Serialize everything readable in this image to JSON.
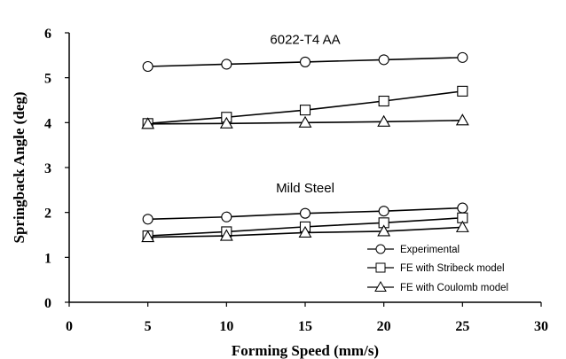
{
  "chart_data": {
    "type": "line",
    "xlabel": "Forming Speed (mm/s)",
    "ylabel": "Springback Angle (deg)",
    "xlim": [
      0,
      30
    ],
    "ylim": [
      0,
      6
    ],
    "xticks": [
      "0",
      "5",
      "10",
      "15",
      "20",
      "25",
      "30"
    ],
    "yticks": [
      "0",
      "1",
      "2",
      "3",
      "4",
      "5",
      "6"
    ],
    "grid": false,
    "legend_position": "bottom-right",
    "legend": [
      {
        "label": "Experimental",
        "marker": "circle"
      },
      {
        "label": "FE with Stribeck model",
        "marker": "square"
      },
      {
        "label": "FE with Coulomb model",
        "marker": "triangle"
      }
    ],
    "annotations": [
      "6022-T4 AA",
      "Mild Steel"
    ],
    "series": [
      {
        "group": "6022-T4 AA",
        "marker": "circle",
        "x": [
          5,
          10,
          15,
          20,
          25
        ],
        "y": [
          5.25,
          5.3,
          5.35,
          5.4,
          5.45
        ]
      },
      {
        "group": "6022-T4 AA",
        "marker": "square",
        "x": [
          5,
          10,
          15,
          20,
          25
        ],
        "y": [
          3.98,
          4.12,
          4.28,
          4.48,
          4.7
        ]
      },
      {
        "group": "6022-T4 AA",
        "marker": "triangle",
        "x": [
          5,
          10,
          15,
          20,
          25
        ],
        "y": [
          3.97,
          3.98,
          4.0,
          4.02,
          4.05
        ]
      },
      {
        "group": "Mild Steel",
        "marker": "circle",
        "x": [
          5,
          10,
          15,
          20,
          25
        ],
        "y": [
          1.85,
          1.9,
          1.98,
          2.03,
          2.1
        ]
      },
      {
        "group": "Mild Steel",
        "marker": "square",
        "x": [
          5,
          10,
          15,
          20,
          25
        ],
        "y": [
          1.48,
          1.57,
          1.68,
          1.77,
          1.88
        ]
      },
      {
        "group": "Mild Steel",
        "marker": "triangle",
        "x": [
          5,
          10,
          15,
          20,
          25
        ],
        "y": [
          1.45,
          1.48,
          1.55,
          1.58,
          1.67
        ]
      }
    ]
  }
}
